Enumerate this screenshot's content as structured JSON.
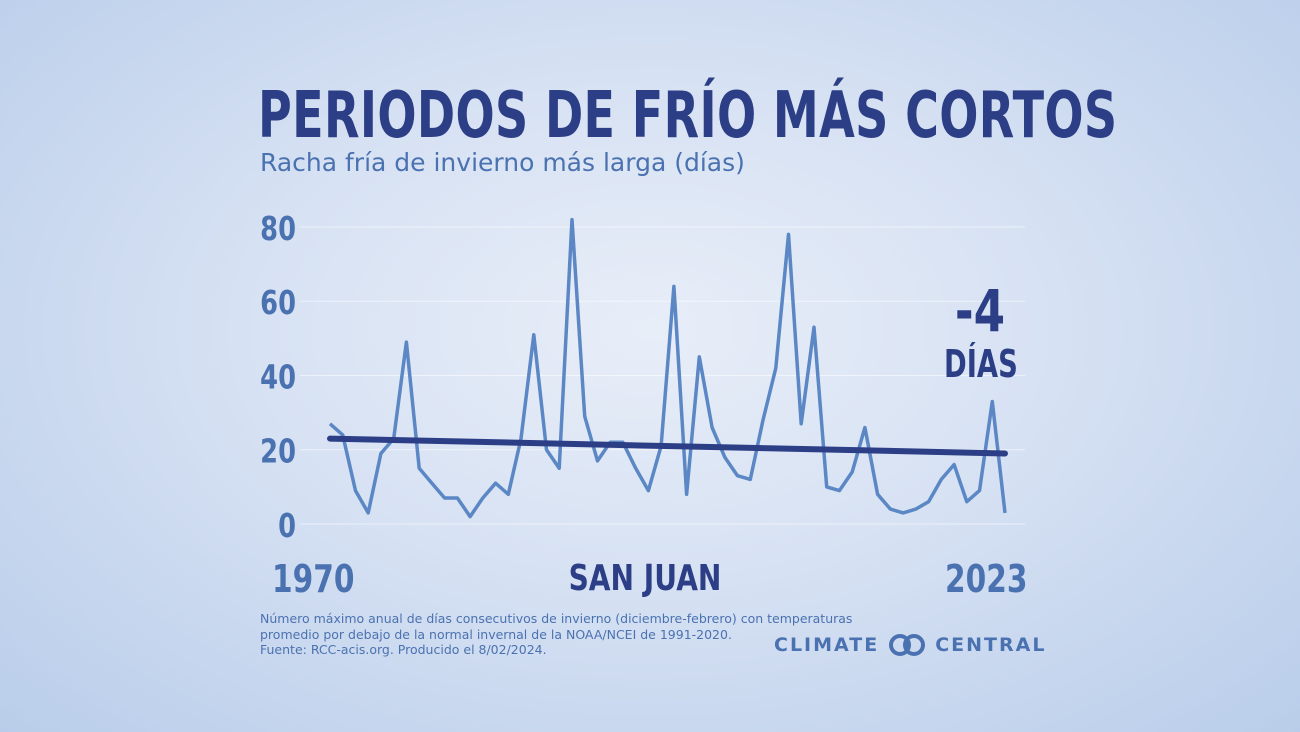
{
  "header": {
    "title": "PERIODOS DE FRÍO MÁS CORTOS",
    "subtitle": "Racha fría de invierno más larga (días)"
  },
  "callout": {
    "value": "-4",
    "unit": "DÍAS"
  },
  "location": "SAN JUAN",
  "footnote": [
    "Número máximo anual de días consecutivos de invierno (diciembre-febrero) con temperaturas",
    "promedio por debajo de la normal invernal de la NOAA/NCEI de 1991-2020.",
    "Fuente: RCC-acis.org. Producido el 8/02/2024."
  ],
  "brand": {
    "left": "CLIMATE",
    "right": "CENTRAL",
    "icon": "climate-central-logo-icon"
  },
  "colors": {
    "title": "#2c3e86",
    "series": "#5b87c5",
    "trend": "#2c3e86",
    "axis_text": "#4b72b0"
  },
  "chart_data": {
    "type": "line",
    "title": "PERIODOS DE FRÍO MÁS CORTOS",
    "subtitle": "Racha fría de invierno más larga (días)",
    "xlabel": "",
    "ylabel": "",
    "xlim": [
      1970,
      2023
    ],
    "ylim": [
      0,
      80
    ],
    "yticks": [
      0,
      20,
      40,
      60,
      80
    ],
    "xtick_labels": [
      "1970",
      "2023"
    ],
    "grid": true,
    "series": [
      {
        "x": [
          1970,
          1971,
          1972,
          1973,
          1974,
          1975,
          1976,
          1977,
          1978,
          1979,
          1980,
          1981,
          1982,
          1983,
          1984,
          1985,
          1986,
          1987,
          1988,
          1989,
          1990,
          1991,
          1992,
          1993,
          1994,
          1995,
          1996,
          1997,
          1998,
          1999,
          2000,
          2001,
          2002,
          2003,
          2004,
          2005,
          2006,
          2007,
          2008,
          2009,
          2010,
          2011,
          2012,
          2013,
          2014,
          2015,
          2016,
          2017,
          2018,
          2019,
          2020,
          2021,
          2022,
          2023
        ],
        "values": [
          27,
          24,
          9,
          3,
          19,
          23,
          49,
          15,
          11,
          7,
          7,
          2,
          7,
          11,
          8,
          23,
          51,
          20,
          15,
          82,
          29,
          17,
          22,
          22,
          15,
          9,
          21,
          64,
          8,
          45,
          26,
          18,
          13,
          12,
          28,
          42,
          78,
          27,
          53,
          10,
          9,
          14,
          26,
          8,
          4,
          3,
          4,
          6,
          12,
          16,
          6,
          9,
          33,
          3
        ]
      },
      {
        "type": "trend",
        "x": [
          1970,
          2023
        ],
        "values": [
          23,
          19
        ]
      }
    ]
  }
}
